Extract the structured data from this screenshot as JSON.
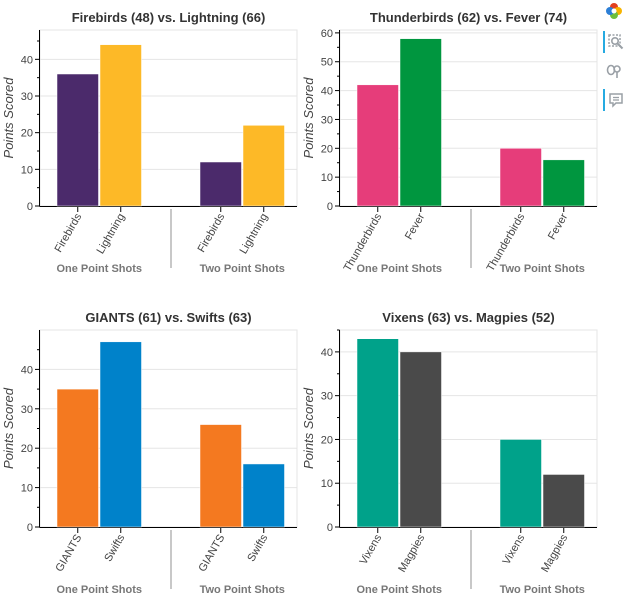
{
  "chart_data": [
    {
      "type": "bar",
      "title": "Firebirds (48) vs. Lightning (66)",
      "ylabel": "Points Scored",
      "ylim": [
        0,
        48
      ],
      "yticks": [
        0,
        10,
        20,
        30,
        40
      ],
      "groups": [
        "One Point Shots",
        "Two Point Shots"
      ],
      "categories": [
        "Firebirds",
        "Lightning"
      ],
      "series": [
        {
          "name": "Firebirds",
          "color": "#4b2a6b",
          "values": [
            36,
            12
          ]
        },
        {
          "name": "Lightning",
          "color": "#fdb927",
          "values": [
            44,
            22
          ]
        }
      ]
    },
    {
      "type": "bar",
      "title": "Thunderbirds (62) vs. Fever (74)",
      "ylabel": "Points Scored",
      "ylim": [
        0,
        61
      ],
      "yticks": [
        0,
        10,
        20,
        30,
        40,
        50,
        60
      ],
      "groups": [
        "One Point Shots",
        "Two Point Shots"
      ],
      "categories": [
        "Thunderbirds",
        "Fever"
      ],
      "series": [
        {
          "name": "Thunderbirds",
          "color": "#e63d7a",
          "values": [
            42,
            20
          ]
        },
        {
          "name": "Fever",
          "color": "#00963f",
          "values": [
            58,
            16
          ]
        }
      ]
    },
    {
      "type": "bar",
      "title": "GIANTS (61) vs. Swifts (63)",
      "ylabel": "Points Scored",
      "ylim": [
        0,
        50
      ],
      "yticks": [
        0,
        10,
        20,
        30,
        40
      ],
      "groups": [
        "One Point Shots",
        "Two Point Shots"
      ],
      "categories": [
        "GIANTS",
        "Swifts"
      ],
      "series": [
        {
          "name": "GIANTS",
          "color": "#f47920",
          "values": [
            35,
            26
          ]
        },
        {
          "name": "Swifts",
          "color": "#0082ca",
          "values": [
            47,
            16
          ]
        }
      ]
    },
    {
      "type": "bar",
      "title": "Vixens (63) vs. Magpies (52)",
      "ylabel": "Points Scored",
      "ylim": [
        0,
        45
      ],
      "yticks": [
        0,
        10,
        20,
        30,
        40
      ],
      "groups": [
        "One Point Shots",
        "Two Point Shots"
      ],
      "categories": [
        "Vixens",
        "Magpies"
      ],
      "series": [
        {
          "name": "Vixens",
          "color": "#00a28a",
          "values": [
            43,
            20
          ]
        },
        {
          "name": "Magpies",
          "color": "#4a4a4a",
          "values": [
            40,
            12
          ]
        }
      ]
    }
  ],
  "toolbar": {
    "tools": [
      "bokeh-logo-icon",
      "box-zoom-icon",
      "wheel-zoom-icon",
      "hover-icon"
    ]
  }
}
